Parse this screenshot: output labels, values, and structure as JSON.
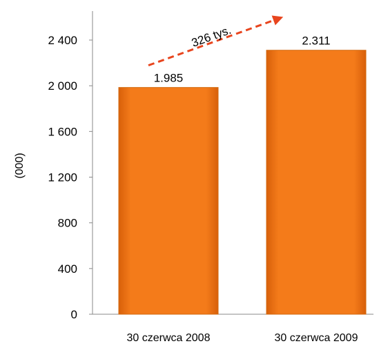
{
  "chart_data": {
    "type": "bar",
    "categories": [
      "30 czerwca 2008",
      "30 czerwca 2009"
    ],
    "values": [
      1985,
      2311
    ],
    "data_labels": [
      "1.985",
      "2.311"
    ],
    "ylabel": "(000)",
    "ylim": [
      0,
      2400
    ],
    "yticks": [
      0,
      400,
      800,
      1200,
      1600,
      2000,
      2400
    ],
    "ytick_labels": [
      "0",
      "400",
      "800",
      "1 200",
      "1 600",
      "2 000",
      "2 400"
    ],
    "grid": false,
    "bar_color": "#F07814",
    "annotation": {
      "text": "326 tys.",
      "arrow_color": "#E8451E"
    }
  }
}
